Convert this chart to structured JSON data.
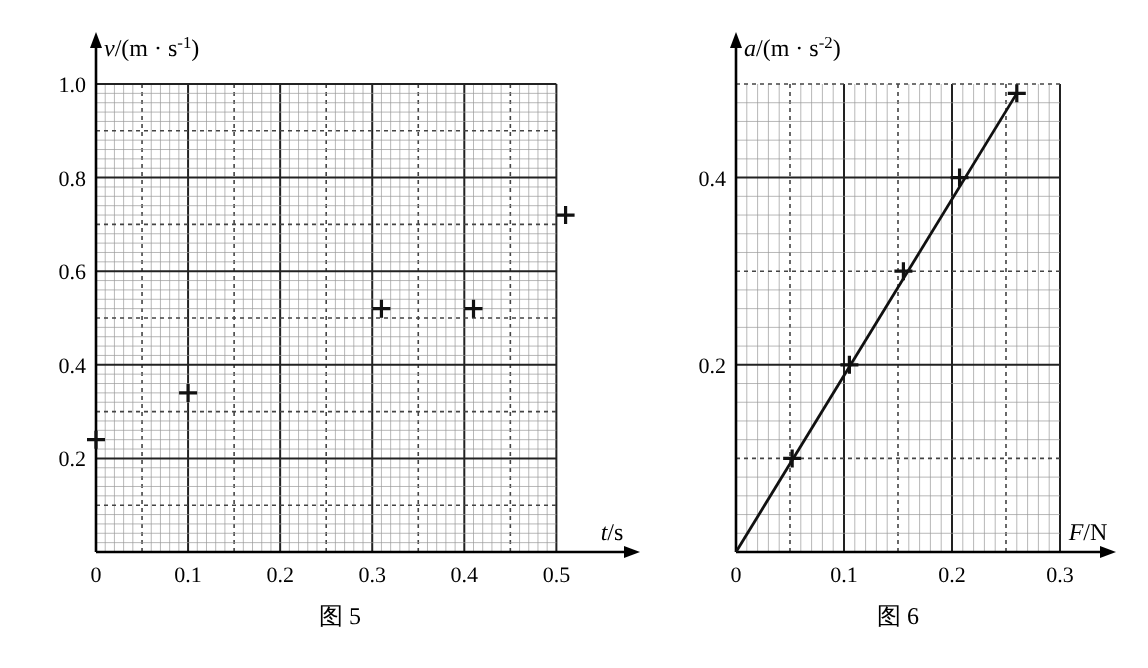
{
  "chart_data": [
    {
      "type": "scatter",
      "title": "图 5",
      "xlabel": "t/s",
      "ylabel": "v/(m · s$^{-1}$)",
      "xlim": [
        0,
        0.53
      ],
      "ylim": [
        0,
        1.0
      ],
      "xticks": [
        0,
        0.1,
        0.2,
        0.3,
        0.4,
        0.5
      ],
      "yticks": [
        0.2,
        0.4,
        0.6,
        0.8,
        {
          "value": 1.0,
          "label": "1.0"
        }
      ],
      "grid": true,
      "marker": "cross",
      "series": [
        {
          "color": "#111111",
          "x": [
            0,
            0.1,
            0.31,
            0.41,
            0.51
          ],
          "values": [
            0.24,
            0.34,
            0.52,
            0.52,
            0.72
          ]
        }
      ]
    },
    {
      "type": "scatter",
      "title": "图 6",
      "xlabel": "F/N",
      "ylabel": "a/(m · s$^{-2}$)",
      "xlim": [
        0,
        0.3
      ],
      "ylim": [
        0,
        0.5
      ],
      "xticks": [
        0,
        0.1,
        0.2,
        0.3
      ],
      "yticks": [
        0.2,
        0.4
      ],
      "grid": true,
      "marker": "cross",
      "series": [
        {
          "color": "#111111",
          "x": [
            0.052,
            0.105,
            0.155,
            0.207,
            0.26
          ],
          "values": [
            0.1,
            0.2,
            0.3,
            0.4,
            0.49
          ]
        },
        {
          "type": "line",
          "color": "#111111",
          "x": [
            0,
            0.26
          ],
          "values": [
            0,
            0.49
          ],
          "marker": "none",
          "line_style": "solid"
        }
      ]
    }
  ]
}
